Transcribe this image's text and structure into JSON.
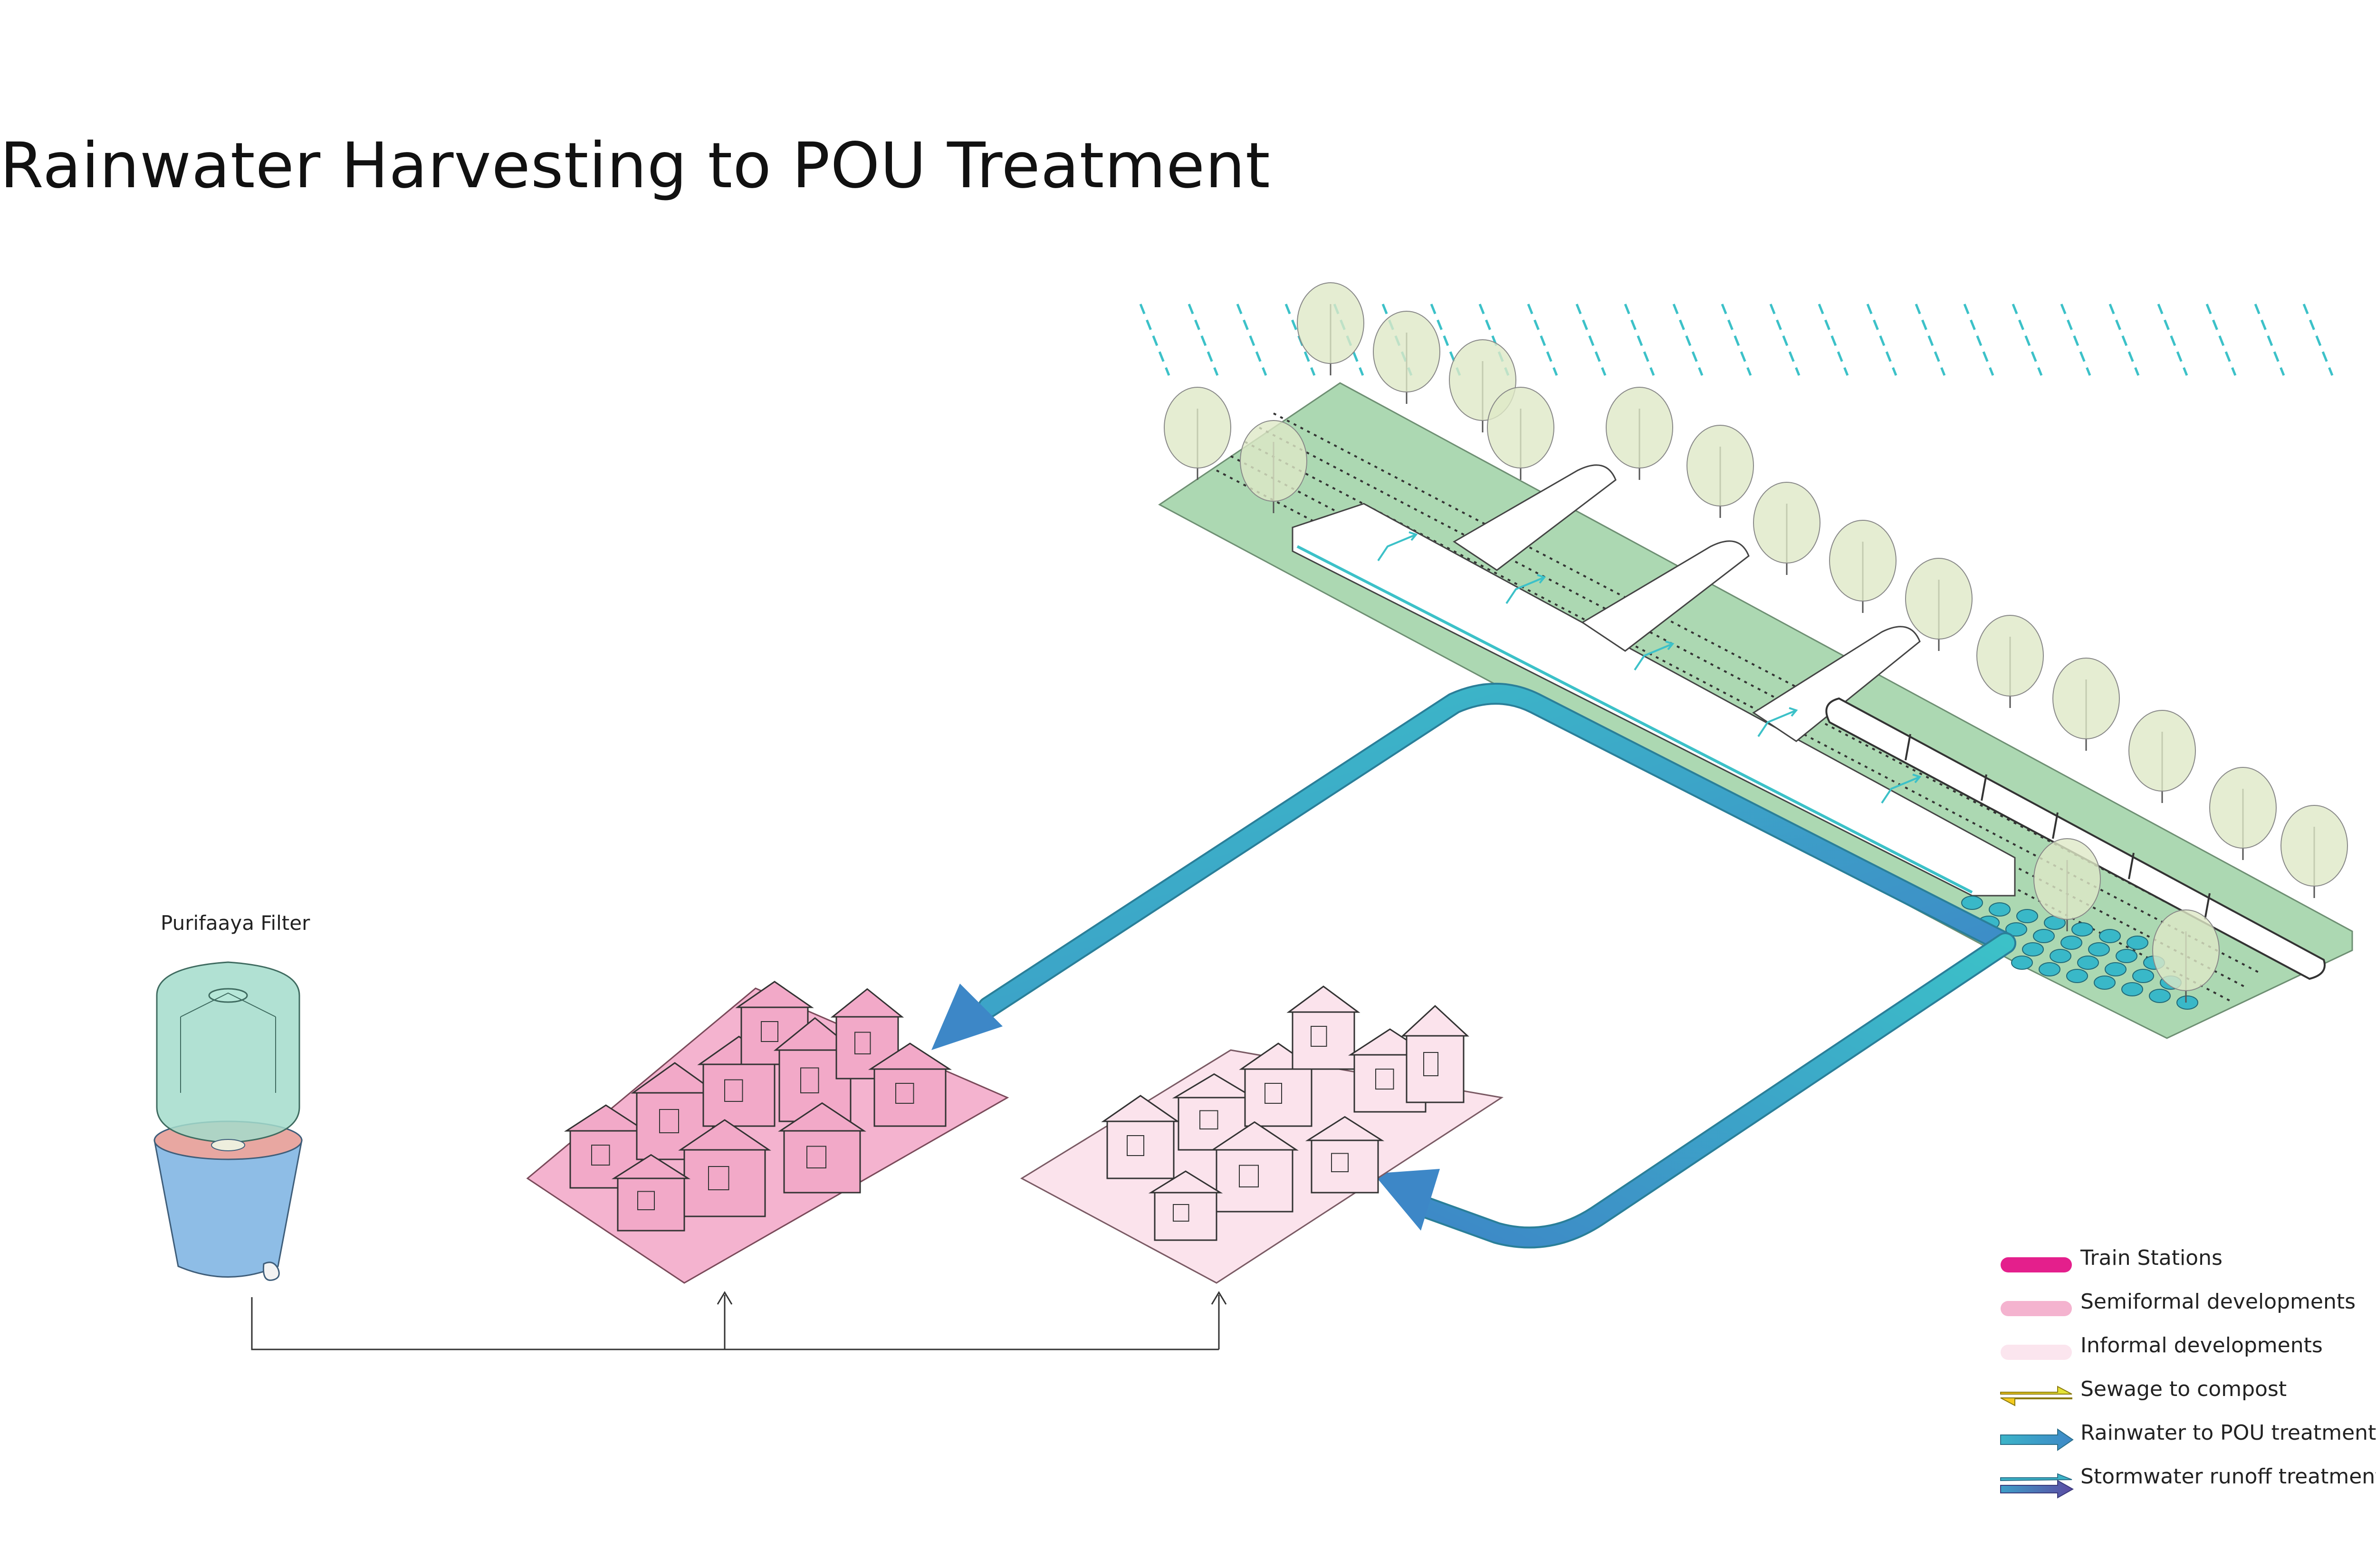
{
  "title": "Rainwater Harvesting to POU Treatment",
  "filter_label": "Purifaaya Filter",
  "colors": {
    "rain": "#3cc1c8",
    "pipe": "#3cc1c8",
    "pipe_dark": "#3d87c7",
    "green": "#a8d5ae",
    "semiformal": "#f4b3cf",
    "informal": "#fbe3ec",
    "filter_top": "#a3dccb",
    "filter_bottom": "#8ebde6"
  },
  "legend": [
    {
      "label": "Train Stations",
      "swatch": "pill",
      "color": "#e41f8c"
    },
    {
      "label": "Semiformal developments",
      "swatch": "pill",
      "color": "#f4b3cf"
    },
    {
      "label": "Informal developments",
      "swatch": "pill",
      "color": "#fbe5ee"
    },
    {
      "label": "Sewage to compost",
      "swatch": "double-arrow",
      "color": "#f2d21c",
      "color2": "#d7e23a"
    },
    {
      "label": "Rainwater to POU treatment",
      "swatch": "arrow",
      "color": "#3cb4c8",
      "color2": "#3d87c7"
    },
    {
      "label": "Stormwater runoff treatment",
      "swatch": "double-arrow-thin",
      "color": "#3cb4c8",
      "color2": "#5b4aa3"
    }
  ]
}
